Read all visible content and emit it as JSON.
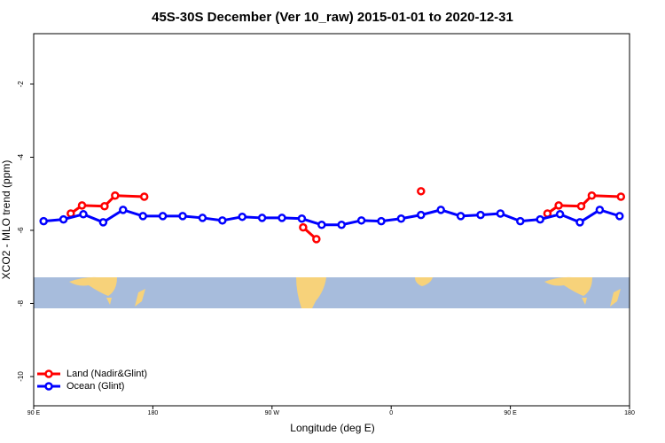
{
  "chart_data": {
    "type": "line",
    "title": "45S-30S December (Ver 10_raw)   2015-01-01 to 2020-12-31",
    "x_label": "Longitude (deg E)",
    "y_label": "XCO2 - MLO trend (ppm)",
    "xlim": [
      90,
      540
    ],
    "ylim": [
      -10.8,
      -0.62
    ],
    "xticks": [
      {
        "value": 90,
        "label": "90 E"
      },
      {
        "value": 180,
        "label": "180"
      },
      {
        "value": 270,
        "label": "90 W"
      },
      {
        "value": 360,
        "label": "0"
      },
      {
        "value": 450,
        "label": "90 E"
      },
      {
        "value": 540,
        "label": "180"
      }
    ],
    "yticks": [
      -2,
      -4,
      -6,
      -8,
      -10
    ],
    "legend": "bottom-left",
    "series": [
      {
        "name": "Land (Nadir&Glint)",
        "color": "#ff0000",
        "x": [
          118,
          126.5,
          143.5,
          151.5,
          173.5,
          null,
          293.5,
          303.5,
          null,
          382.5,
          null,
          478,
          486.5,
          503.5,
          511.5,
          533.5
        ],
        "values": [
          -5.54,
          -5.32,
          -5.34,
          -5.05,
          -5.08,
          null,
          -5.92,
          -6.24,
          null,
          -4.93,
          null,
          -5.54,
          -5.32,
          -5.34,
          -5.05,
          -5.08
        ]
      },
      {
        "name": "Ocean (Glint)",
        "color": "#0000ff",
        "x": [
          97.5,
          112.5,
          127.5,
          142.5,
          157.5,
          172.5,
          187.5,
          202.5,
          217.5,
          232.5,
          247.5,
          262.5,
          277.5,
          292.5,
          307.5,
          322.5,
          337.5,
          352.5,
          367.5,
          382.5,
          397.5,
          412.5,
          427.5,
          442.5,
          457.5,
          472.5,
          487.5,
          502.5,
          517.5,
          532.5
        ],
        "values": [
          -5.75,
          -5.7,
          -5.56,
          -5.78,
          -5.44,
          -5.61,
          -5.61,
          -5.61,
          -5.66,
          -5.73,
          -5.63,
          -5.66,
          -5.66,
          -5.68,
          -5.85,
          -5.85,
          -5.73,
          -5.75,
          -5.68,
          -5.58,
          -5.44,
          -5.61,
          -5.58,
          -5.54,
          -5.75,
          -5.7,
          -5.56,
          -5.78,
          -5.44,
          -5.61
        ]
      }
    ]
  }
}
